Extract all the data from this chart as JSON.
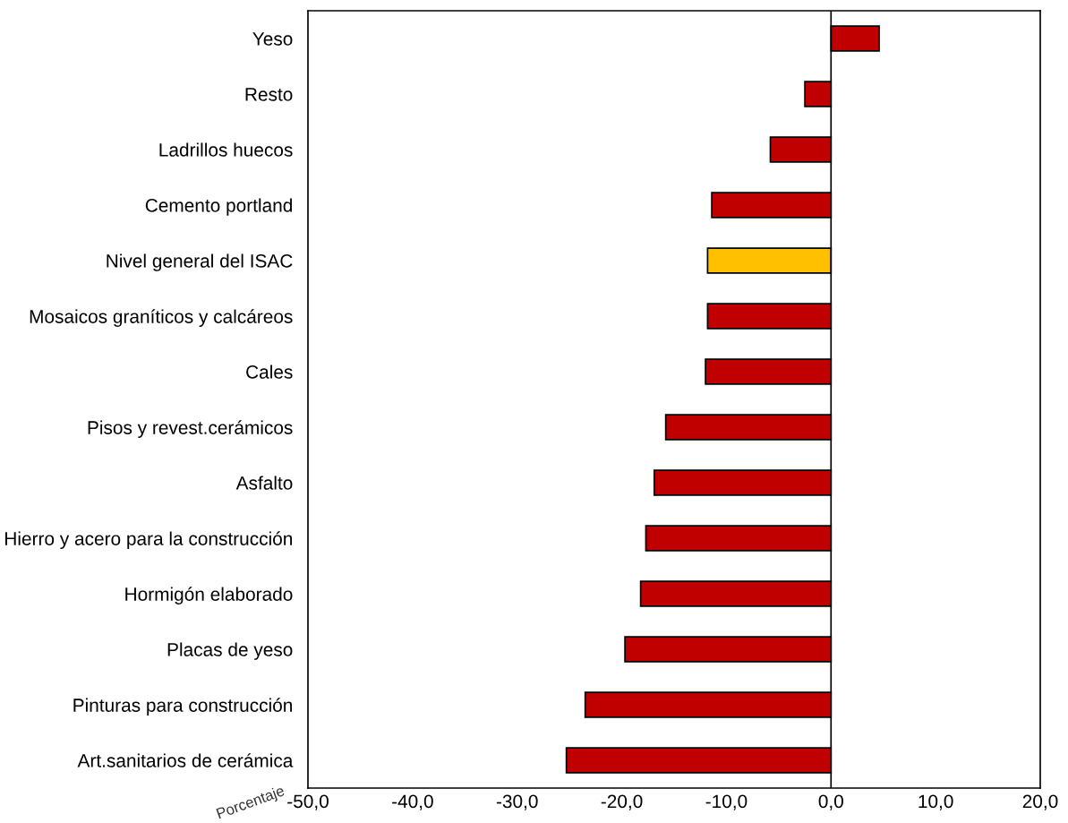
{
  "chart_data": {
    "type": "bar",
    "orientation": "horizontal",
    "xlabel": "Porcentaje",
    "categories": [
      "Yeso",
      "Resto",
      "Ladrillos huecos",
      "Cemento portland",
      "Nivel general del ISAC",
      "Mosaicos graníticos y calcáreos",
      "Cales",
      "Pisos y revest.cerámicos",
      "Asfalto",
      "Hierro y acero para la construcción",
      "Hormigón elaborado",
      "Placas de yeso",
      "Pinturas para construcción",
      "Art.sanitarios de cerámica"
    ],
    "values": [
      4.6,
      -2.5,
      -5.8,
      -11.4,
      -11.8,
      -11.8,
      -12.0,
      -15.8,
      -16.9,
      -17.7,
      -18.2,
      -19.7,
      -23.5,
      -25.3
    ],
    "colors": [
      "#c00000",
      "#c00000",
      "#c00000",
      "#c00000",
      "#ffc000",
      "#c00000",
      "#c00000",
      "#c00000",
      "#c00000",
      "#c00000",
      "#c00000",
      "#c00000",
      "#c00000",
      "#c00000"
    ],
    "xlim": [
      -50,
      20
    ],
    "xticks": [
      {
        "value": -50,
        "label": "-50,0"
      },
      {
        "value": -40,
        "label": "-40,0"
      },
      {
        "value": -30,
        "label": "-30,0"
      },
      {
        "value": -20,
        "label": "-20,0"
      },
      {
        "value": -10,
        "label": "-10,0"
      },
      {
        "value": 0,
        "label": "0,0"
      },
      {
        "value": 10,
        "label": "10,0"
      },
      {
        "value": 20,
        "label": "20,0"
      }
    ],
    "ref_lines": [
      {
        "axis": "x",
        "value": 0,
        "color": "#000000"
      }
    ],
    "grid": false,
    "legend": false
  }
}
